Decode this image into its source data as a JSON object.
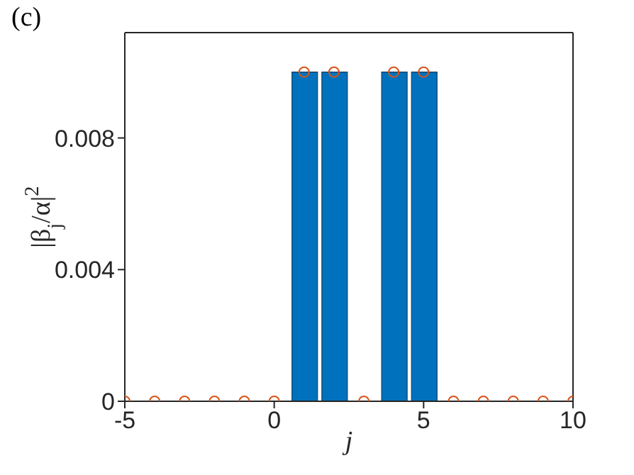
{
  "chart_data": {
    "type": "bar",
    "xlabel": "j",
    "ylabel": "|β$_{j}$/α|$^{2}$",
    "annotations": [
      "(c)"
    ],
    "xlim": [
      -5,
      10
    ],
    "xticks": [
      -5,
      0,
      5,
      10
    ],
    "ylim": [
      0,
      0.0112
    ],
    "yticks": [
      0,
      0.004,
      0.008
    ],
    "grid": false,
    "legend": false,
    "series": [
      {
        "color": "#0072bd",
        "x": [
          1,
          2,
          4,
          5
        ],
        "values": [
          0.01,
          0.01,
          0.01,
          0.01
        ]
      },
      {
        "type": "scatter",
        "color": "#d95319",
        "marker": "circle",
        "x": [
          -5,
          -4,
          -3,
          -2,
          -1,
          0,
          1,
          2,
          3,
          4,
          5,
          6,
          7,
          8,
          9,
          10
        ],
        "values": [
          0,
          0,
          0,
          0,
          0,
          0,
          0.01,
          0.01,
          0,
          0.01,
          0.01,
          0,
          0,
          0,
          0,
          0
        ]
      }
    ]
  }
}
